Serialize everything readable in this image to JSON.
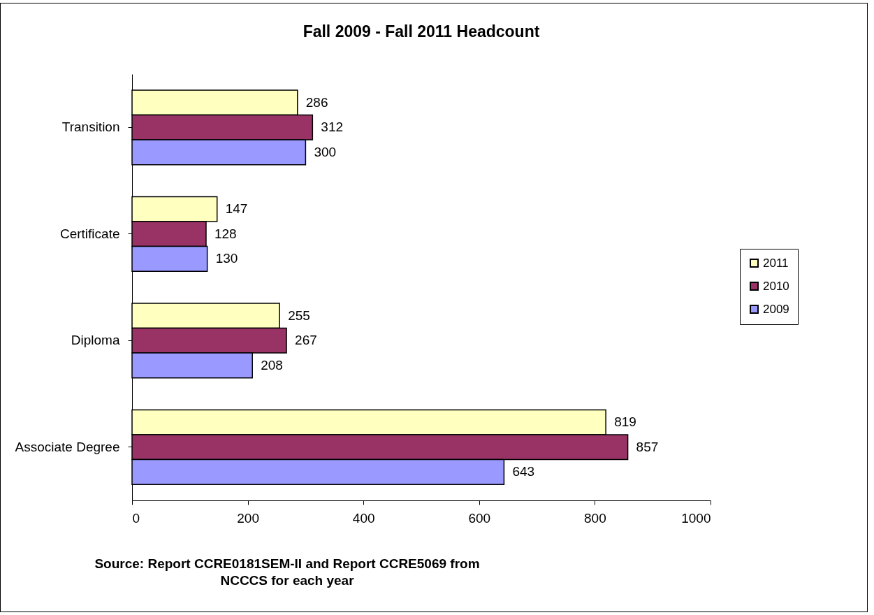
{
  "chart_data": {
    "type": "bar",
    "orientation": "horizontal",
    "title": "Fall 2009 - Fall 2011 Headcount",
    "categories": [
      "Transition",
      "Certificate",
      "Diploma",
      "Associate Degree"
    ],
    "series": [
      {
        "name": "2011",
        "color": "#ffffc0",
        "values": [
          286,
          147,
          255,
          819
        ]
      },
      {
        "name": "2010",
        "color": "#993366",
        "values": [
          312,
          128,
          267,
          857
        ]
      },
      {
        "name": "2009",
        "color": "#9999ff",
        "values": [
          300,
          130,
          208,
          643
        ]
      }
    ],
    "xlim": [
      0,
      1000
    ],
    "xticks": [
      0,
      200,
      400,
      600,
      800,
      1000
    ],
    "grid": false,
    "legend": "right",
    "data_labels": true,
    "annotations": [
      "Source:  Report CCRE0181SEM-II and Report CCRE5069 from NCCCS for each year"
    ]
  }
}
